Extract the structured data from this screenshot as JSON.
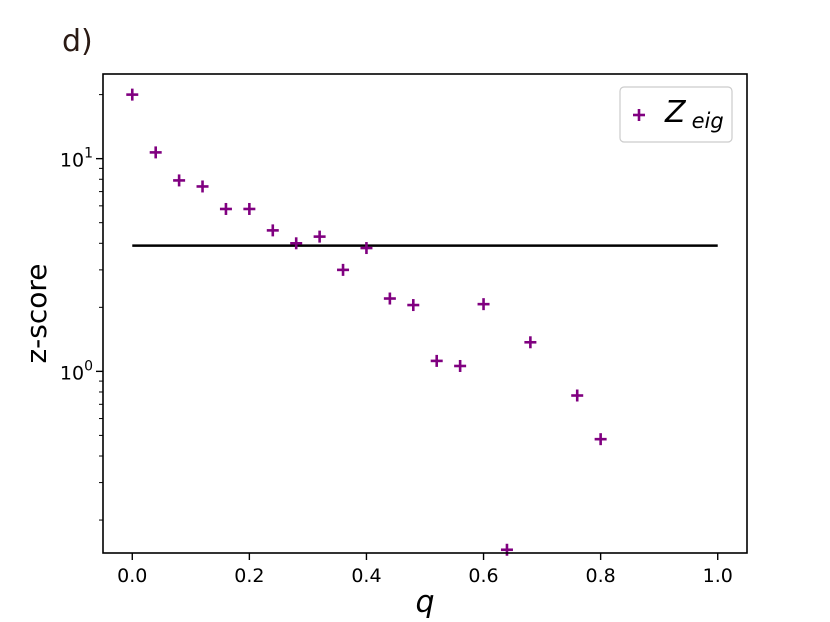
{
  "panel_label": "d)",
  "chart_data": {
    "type": "scatter",
    "xlabel": "q",
    "ylabel": "z-score",
    "xlim": [
      -0.05,
      1.05
    ],
    "ylim": [
      0.14,
      25
    ],
    "yscale": "log",
    "x_ticks": [
      "0.0",
      "0.2",
      "0.4",
      "0.6",
      "0.8",
      "1.0"
    ],
    "y_ticks": [
      {
        "value": 1,
        "base": "10",
        "exp": "0"
      },
      {
        "value": 10,
        "base": "10",
        "exp": "1"
      }
    ],
    "grid": false,
    "legend_position": "top-right",
    "series": [
      {
        "name_main": "Z",
        "name_sub": "eig",
        "marker": "+",
        "color": "#800080",
        "x": [
          0.0,
          0.04,
          0.08,
          0.12,
          0.16,
          0.2,
          0.24,
          0.28,
          0.32,
          0.36,
          0.4,
          0.44,
          0.48,
          0.52,
          0.56,
          0.6,
          0.64,
          0.68,
          0.76,
          0.8
        ],
        "y": [
          20.0,
          10.7,
          7.9,
          7.4,
          5.8,
          5.8,
          4.6,
          4.0,
          4.3,
          3.0,
          3.8,
          2.2,
          2.05,
          1.12,
          1.06,
          2.07,
          0.145,
          1.37,
          0.77,
          0.48
        ]
      }
    ],
    "reference_line": {
      "y": 3.9,
      "x_from": 0.0,
      "x_to": 1.0,
      "color": "#000000"
    }
  }
}
